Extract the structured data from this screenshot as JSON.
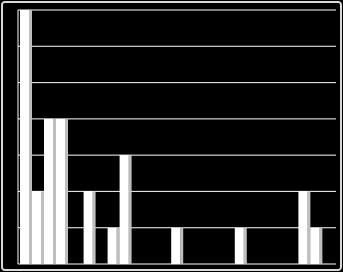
{
  "chart_data": {
    "type": "bar",
    "categories": [
      null,
      null,
      null,
      null,
      null
    ],
    "series": [
      {
        "color": "#ffffff",
        "values": [
          7,
          2,
          0,
          0,
          0
        ]
      },
      {
        "color": "#ffffff",
        "values": [
          2,
          0,
          0,
          0,
          0
        ]
      },
      {
        "color": "#ffffff",
        "values": [
          4,
          1,
          1,
          1,
          2
        ]
      },
      {
        "color": "#ffffff",
        "values": [
          4,
          3,
          0,
          0,
          1
        ]
      }
    ],
    "ylim": [
      0,
      7
    ],
    "yticks": [
      0,
      1,
      2,
      3,
      4,
      5,
      6,
      7
    ],
    "grid": true
  }
}
